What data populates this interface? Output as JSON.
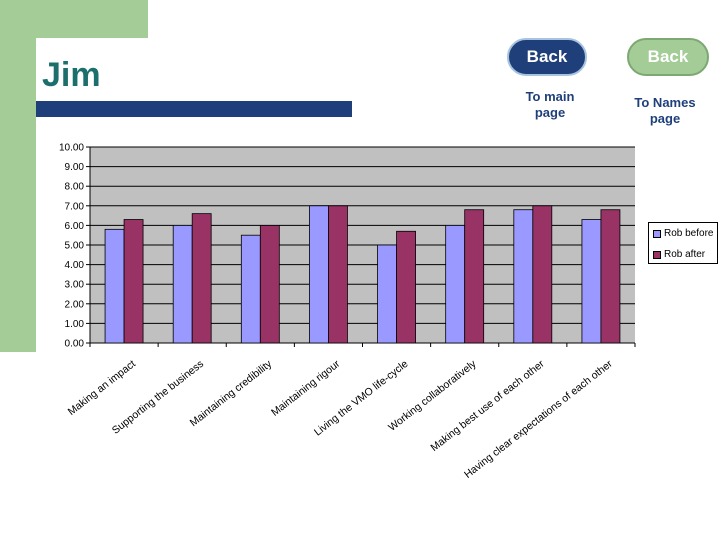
{
  "header": {
    "title": "Jim"
  },
  "buttons": {
    "back_main_label": "Back",
    "back_main_caption": "To main page",
    "back_names_label": "Back",
    "back_names_caption": "To Names page"
  },
  "colors": {
    "series_before": "#9999ff",
    "series_after": "#993366",
    "plot_bg": "#c0c0c0",
    "title_color": "#1c6f6a",
    "accent_green": "#a3cc96",
    "accent_navy": "#1f3f7a"
  },
  "chart_data": {
    "type": "bar",
    "categories": [
      "Making an impact",
      "Supporting the business",
      "Maintaining credibility",
      "Maintaining rigour",
      "Living the VMO life-cycle",
      "Working collaboratively",
      "Making best use of each other",
      "Having clear expectations of each other"
    ],
    "series": [
      {
        "name": "Rob before",
        "values": [
          5.8,
          6.0,
          5.5,
          7.0,
          5.0,
          6.0,
          6.8,
          6.3
        ]
      },
      {
        "name": "Rob after",
        "values": [
          6.3,
          6.6,
          6.0,
          7.0,
          5.7,
          6.8,
          7.0,
          6.8
        ]
      }
    ],
    "ylim": [
      0,
      10
    ],
    "yticks": [
      "0.00",
      "1.00",
      "2.00",
      "3.00",
      "4.00",
      "5.00",
      "6.00",
      "7.00",
      "8.00",
      "9.00",
      "10.00"
    ],
    "title": "",
    "xlabel": "",
    "ylabel": "",
    "grid": true,
    "legend_position": "right"
  }
}
